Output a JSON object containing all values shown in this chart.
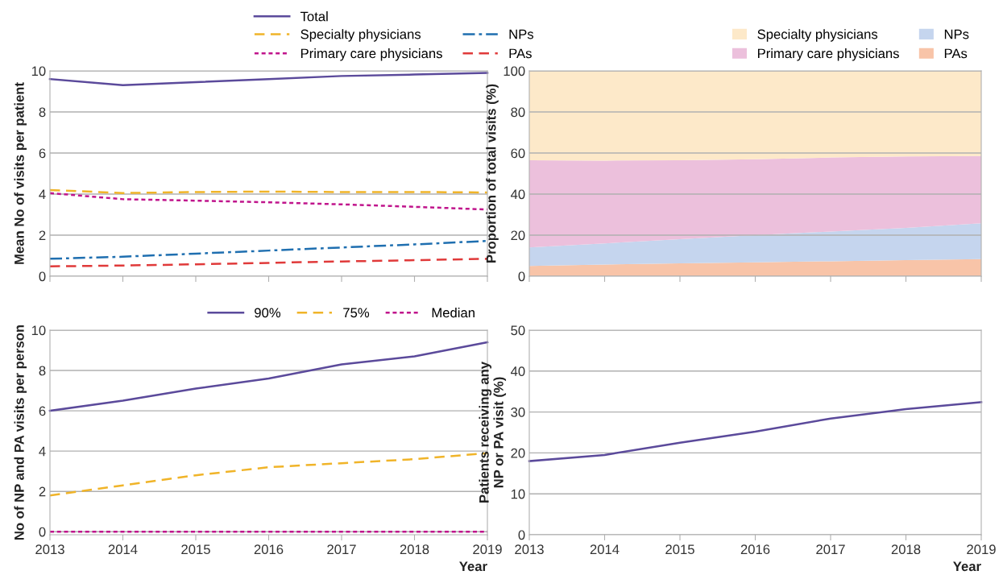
{
  "chart_data": [
    {
      "type": "line",
      "ylabel": "Mean No of visits per patient",
      "x": [
        2013,
        2014,
        2015,
        2016,
        2017,
        2018,
        2019
      ],
      "xlim": [
        2013,
        2019
      ],
      "xticks": [
        {
          "value": 2013,
          "label": null
        },
        {
          "value": 2014,
          "label": null
        },
        {
          "value": 2015,
          "label": null
        },
        {
          "value": 2016,
          "label": null
        },
        {
          "value": 2017,
          "label": null
        },
        {
          "value": 2018,
          "label": null
        },
        {
          "value": 2019,
          "label": null
        }
      ],
      "ylim": [
        0,
        10
      ],
      "yticks": [
        0,
        2,
        4,
        6,
        8,
        10
      ],
      "grid": "y",
      "legend": "top",
      "tick_labels": "y",
      "series": [
        {
          "name": "Total",
          "color": "#5b4a9b",
          "line_style": "solid",
          "values": [
            9.6,
            9.3,
            9.45,
            9.6,
            9.75,
            9.82,
            9.9
          ]
        },
        {
          "name": "Specialty physicians",
          "color": "#f0b429",
          "line_style": "dashed",
          "values": [
            4.2,
            4.05,
            4.1,
            4.12,
            4.1,
            4.1,
            4.08
          ]
        },
        {
          "name": "Primary care physicians",
          "color": "#c0158c",
          "line_style": "dotted",
          "values": [
            4.05,
            3.75,
            3.68,
            3.6,
            3.5,
            3.38,
            3.25
          ]
        },
        {
          "name": "NPs",
          "color": "#1f6fb0",
          "line_style": "dashdot",
          "values": [
            0.85,
            0.95,
            1.1,
            1.25,
            1.4,
            1.55,
            1.72
          ]
        },
        {
          "name": "PAs",
          "color": "#e03a3a",
          "line_style": "dashed",
          "values": [
            0.48,
            0.52,
            0.58,
            0.65,
            0.72,
            0.78,
            0.85
          ]
        }
      ]
    },
    {
      "type": "area",
      "stacked": true,
      "ylabel": "Proportion of total visits (%)",
      "x": [
        2013,
        2014,
        2015,
        2016,
        2017,
        2018,
        2019
      ],
      "xlim": [
        2013,
        2019
      ],
      "xticks": [
        {
          "value": 2013,
          "label": null
        },
        {
          "value": 2014,
          "label": null
        },
        {
          "value": 2015,
          "label": null
        },
        {
          "value": 2016,
          "label": null
        },
        {
          "value": 2017,
          "label": null
        },
        {
          "value": 2018,
          "label": null
        },
        {
          "value": 2019,
          "label": null
        }
      ],
      "ylim": [
        0,
        100
      ],
      "yticks": [
        0,
        20,
        40,
        60,
        80,
        100
      ],
      "grid": "y",
      "legend": "top right",
      "tick_labels": "y",
      "series": [
        {
          "name": "PAs",
          "color": "#f8c4a8",
          "values": [
            5,
            5.7,
            6.3,
            6.8,
            7.3,
            7.8,
            8.3
          ]
        },
        {
          "name": "NPs",
          "color": "#c5d5ee",
          "values": [
            9,
            10.3,
            11.7,
            13.2,
            14.5,
            15.7,
            17.5
          ]
        },
        {
          "name": "Primary care physicians",
          "color": "#ecc0dc",
          "values": [
            42.5,
            40.3,
            38.5,
            37,
            36,
            34.8,
            32.7
          ]
        },
        {
          "name": "Specialty physicians",
          "color": "#fde9c9",
          "values": [
            43.5,
            43.7,
            43.5,
            43,
            42.2,
            41.7,
            41.5
          ]
        }
      ]
    },
    {
      "type": "line",
      "ylabel": "No of NP and PA visits per person",
      "xlabel": "Year",
      "x": [
        2013,
        2014,
        2015,
        2016,
        2017,
        2018,
        2019
      ],
      "xlim": [
        2013,
        2019
      ],
      "xticks": [
        2013,
        2014,
        2015,
        2016,
        2017,
        2018,
        2019
      ],
      "ylim": [
        -0.15,
        10
      ],
      "yticks": [
        0,
        2,
        4,
        6,
        8,
        10
      ],
      "grid": "y",
      "legend": "top right",
      "series": [
        {
          "name": "90%",
          "color": "#5b4a9b",
          "line_style": "solid",
          "values": [
            6.0,
            6.5,
            7.1,
            7.6,
            8.3,
            8.7,
            9.4
          ]
        },
        {
          "name": "75%",
          "color": "#f0b429",
          "line_style": "dashed",
          "values": [
            1.8,
            2.3,
            2.8,
            3.2,
            3.4,
            3.6,
            3.9
          ]
        },
        {
          "name": "Median",
          "color": "#c0158c",
          "line_style": "dotted",
          "values": [
            0,
            0,
            0,
            0,
            0,
            0,
            0
          ]
        }
      ]
    },
    {
      "type": "line",
      "ylabel": "Patients receiving any\nNP or PA visit (%)",
      "xlabel": "Year",
      "x": [
        2013,
        2014,
        2015,
        2016,
        2017,
        2018,
        2019
      ],
      "xlim": [
        2013,
        2019
      ],
      "xticks": [
        2013,
        2014,
        2015,
        2016,
        2017,
        2018,
        2019
      ],
      "ylim": [
        0,
        50
      ],
      "yticks": [
        0,
        10,
        20,
        30,
        40,
        50
      ],
      "grid": "y",
      "series": [
        {
          "color": "#5b4a9b",
          "line_style": "solid",
          "values": [
            18,
            19.5,
            22.5,
            25.2,
            28.4,
            30.7,
            32.4
          ]
        }
      ]
    }
  ]
}
